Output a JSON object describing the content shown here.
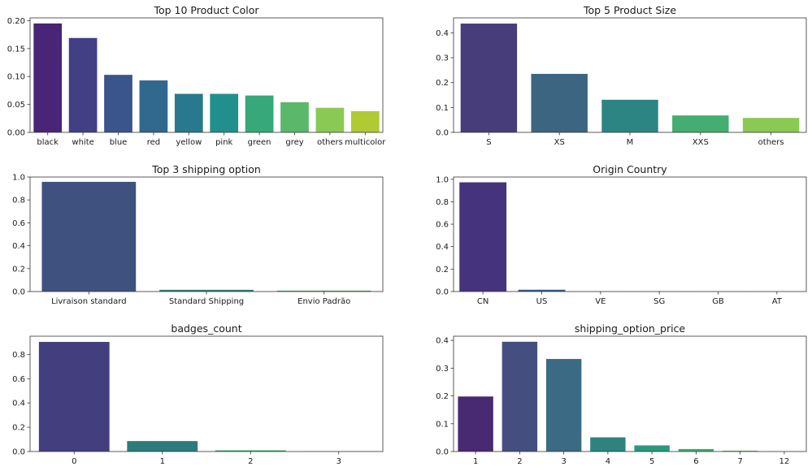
{
  "chart_data": [
    {
      "type": "bar",
      "title": "Top 10 Product Color",
      "categories": [
        "black",
        "white",
        "blue",
        "red",
        "yellow",
        "pink",
        "green",
        "grey",
        "others",
        "multicolor"
      ],
      "values": [
        0.195,
        0.169,
        0.103,
        0.093,
        0.069,
        0.069,
        0.066,
        0.054,
        0.044,
        0.038
      ],
      "ylim": [
        0,
        0.205
      ],
      "yticks": [
        "0.00",
        "0.05",
        "0.10",
        "0.15",
        "0.20"
      ],
      "colors": [
        "#482576",
        "#423f85",
        "#3a548c",
        "#31688e",
        "#29798e",
        "#21908d",
        "#36a87a",
        "#5bb86a",
        "#8bc955",
        "#b0ca34"
      ],
      "grid": false
    },
    {
      "type": "bar",
      "title": "Top 5 Product Size",
      "categories": [
        "S",
        "XS",
        "M",
        "XXS",
        "others"
      ],
      "values": [
        0.437,
        0.235,
        0.131,
        0.068,
        0.058
      ],
      "ylim": [
        0,
        0.46
      ],
      "yticks": [
        "0.0",
        "0.1",
        "0.2",
        "0.3",
        "0.4"
      ],
      "colors": [
        "#473d7b",
        "#3b6581",
        "#2c8582",
        "#44ad72",
        "#8bc953"
      ],
      "grid": false
    },
    {
      "type": "bar",
      "title": "Top 3 shipping option",
      "categories": [
        "Livraison standard",
        "Standard Shipping",
        "Envio Padrão"
      ],
      "values": [
        0.958,
        0.015,
        0.008
      ],
      "ylim": [
        0,
        1.0
      ],
      "yticks": [
        "0.0",
        "0.2",
        "0.4",
        "0.6",
        "0.8",
        "1.0"
      ],
      "colors": [
        "#3f527f",
        "#2d7f7a",
        "#4aa76e"
      ],
      "grid": false
    },
    {
      "type": "bar",
      "title": "Origin Country",
      "categories": [
        "CN",
        "US",
        "VE",
        "SG",
        "GB",
        "AT"
      ],
      "values": [
        0.973,
        0.016,
        0.001,
        0.001,
        0.001,
        0.001
      ],
      "ylim": [
        0,
        1.02
      ],
      "yticks": [
        "0.0",
        "0.2",
        "0.4",
        "0.6",
        "0.8",
        "1.0"
      ],
      "colors": [
        "#46337e",
        "#365c8d",
        "#277f8e",
        "#1fa187",
        "#4ac16d",
        "#a0da39"
      ],
      "grid": false
    },
    {
      "type": "bar",
      "title": "badges_count",
      "categories": [
        "0",
        "1",
        "2",
        "3"
      ],
      "values": [
        0.903,
        0.086,
        0.01,
        0.001
      ],
      "ylim": [
        0,
        0.95
      ],
      "yticks": [
        "0.0",
        "0.2",
        "0.4",
        "0.6",
        "0.8"
      ],
      "colors": [
        "#433e7d",
        "#2d7c7c",
        "#3fa875",
        "#7cc95a"
      ],
      "grid": false
    },
    {
      "type": "bar",
      "title": "shipping_option_price",
      "categories": [
        "1",
        "2",
        "3",
        "4",
        "5",
        "6",
        "7",
        "12"
      ],
      "values": [
        0.198,
        0.395,
        0.333,
        0.051,
        0.022,
        0.009,
        0.003,
        0.001
      ],
      "ylim": [
        0,
        0.415
      ],
      "yticks": [
        "0.0",
        "0.1",
        "0.2",
        "0.3",
        "0.4"
      ],
      "colors": [
        "#482a72",
        "#444f80",
        "#3a6a84",
        "#2e8381",
        "#29997c",
        "#3eac71",
        "#72c158",
        "#b3d233"
      ],
      "grid": false
    }
  ]
}
